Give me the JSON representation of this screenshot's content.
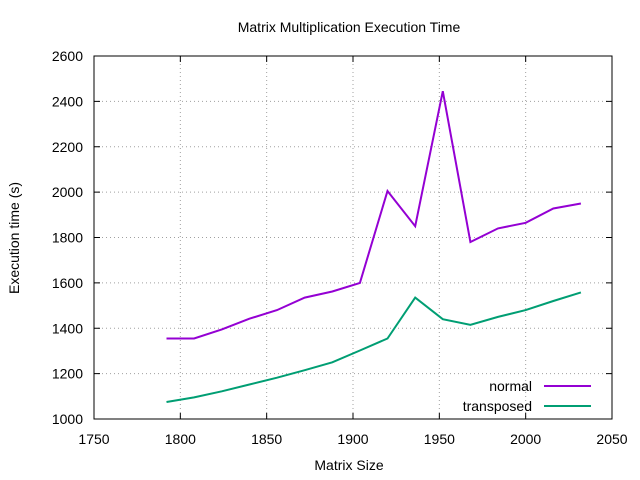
{
  "chart_data": {
    "type": "line",
    "title": "Matrix Multiplication Execution Time",
    "xlabel": "Matrix Size",
    "ylabel": "Execution time (s)",
    "xlim": [
      1750,
      2050
    ],
    "ylim": [
      1000,
      2600
    ],
    "xticks": [
      1750,
      1800,
      1850,
      1900,
      1950,
      2000,
      2050
    ],
    "yticks": [
      1000,
      1200,
      1400,
      1600,
      1800,
      2000,
      2200,
      2400,
      2600
    ],
    "grid": true,
    "legend_position": "bottom-right",
    "x": [
      1792,
      1808,
      1824,
      1840,
      1856,
      1872,
      1888,
      1904,
      1920,
      1936,
      1952,
      1968,
      1984,
      2000,
      2016,
      2032
    ],
    "series": [
      {
        "name": "normal",
        "color": "#9400d3",
        "values": [
          1355,
          1355,
          1395,
          1442,
          1480,
          1535,
          1562,
          1600,
          2005,
          1850,
          2445,
          1780,
          1840,
          1865,
          1928,
          1950
        ]
      },
      {
        "name": "transposed",
        "color": "#009e73",
        "values": [
          1075,
          1095,
          1122,
          1152,
          1182,
          1215,
          1250,
          1302,
          1355,
          1535,
          1440,
          1415,
          1450,
          1480,
          1520,
          1558
        ]
      }
    ]
  }
}
